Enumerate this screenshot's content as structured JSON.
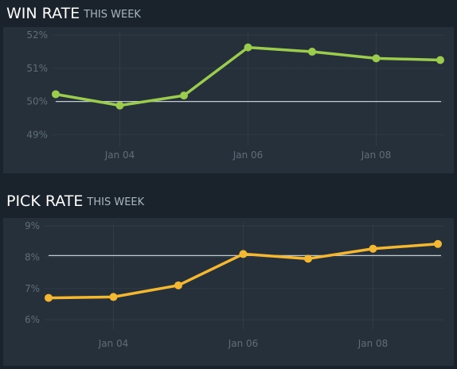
{
  "charts": [
    {
      "title": "WIN RATE",
      "subtitle": "THIS WEEK"
    },
    {
      "title": "PICK RATE",
      "subtitle": "THIS WEEK"
    }
  ],
  "chart_data": [
    {
      "type": "line",
      "title": "WIN RATE",
      "subtitle": "THIS WEEK",
      "x": [
        "Jan 03",
        "Jan 04",
        "Jan 05",
        "Jan 06",
        "Jan 07",
        "Jan 08",
        "Jan 09"
      ],
      "x_tick_labels": [
        "Jan 04",
        "Jan 06",
        "Jan 08"
      ],
      "y_tick_labels": [
        "52%",
        "51%",
        "50%",
        "49%"
      ],
      "y_ticks": [
        52,
        51,
        50,
        49
      ],
      "ylim": [
        48.65,
        52.1
      ],
      "series": [
        {
          "values": [
            50.22,
            49.88,
            50.18,
            51.63,
            51.5,
            51.3,
            51.25
          ],
          "color": "#9ccc4e"
        }
      ],
      "reference_line": 50,
      "grid": true
    },
    {
      "type": "line",
      "title": "PICK RATE",
      "subtitle": "THIS WEEK",
      "x": [
        "Jan 03",
        "Jan 04",
        "Jan 05",
        "Jan 06",
        "Jan 07",
        "Jan 08",
        "Jan 09"
      ],
      "x_tick_labels": [
        "Jan 04",
        "Jan 06",
        "Jan 08"
      ],
      "y_tick_labels": [
        "9%",
        "8%",
        "7%",
        "6%"
      ],
      "y_ticks": [
        9,
        8,
        7,
        6
      ],
      "ylim": [
        5.7,
        9.1
      ],
      "series": [
        {
          "values": [
            6.7,
            6.73,
            7.1,
            8.1,
            7.95,
            8.27,
            8.42
          ],
          "color": "#f4b731"
        }
      ],
      "reference_line": 8.05,
      "grid": true
    }
  ]
}
